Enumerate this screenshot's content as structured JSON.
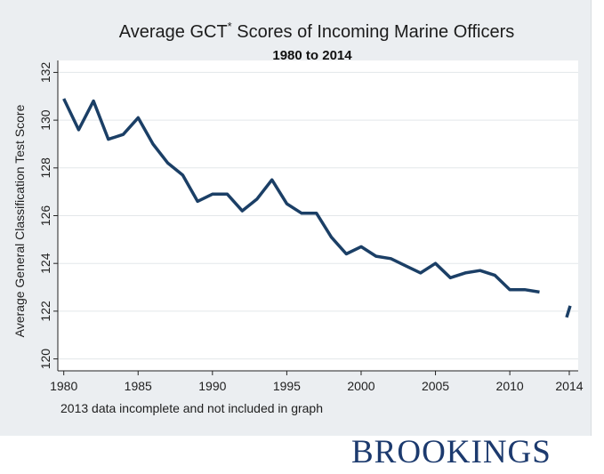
{
  "chart_data": {
    "type": "line",
    "title": "Average GCT",
    "title_superscript": "*",
    "title_rest": " Scores of Incoming Marine Officers",
    "subtitle": "1980 to 2014",
    "ylabel": "Average General Classification Test Score",
    "xlabel": "",
    "note": "2013 data incomplete and not included in graph",
    "xlim": [
      1979.6,
      2014.6
    ],
    "ylim": [
      119.5,
      132.5
    ],
    "x_ticks": [
      1980,
      1985,
      1990,
      1995,
      2000,
      2005,
      2010,
      2014
    ],
    "y_ticks": [
      120,
      122,
      124,
      126,
      128,
      130,
      132
    ],
    "grid": true,
    "series": [
      {
        "name": "Average GCT Score",
        "color": "#1b3f66",
        "segments": [
          {
            "x": [
              1980,
              1981,
              1982,
              1983,
              1984,
              1985,
              1986,
              1987,
              1988,
              1989,
              1990,
              1991,
              1992,
              1993,
              1994,
              1995,
              1996,
              1997,
              1998,
              1999,
              2000,
              2001,
              2002,
              2003,
              2004,
              2005,
              2006,
              2007,
              2008,
              2009,
              2010,
              2011,
              2012
            ],
            "y": [
              130.9,
              129.6,
              130.8,
              129.2,
              129.4,
              130.1,
              129.0,
              128.2,
              127.7,
              126.6,
              126.9,
              126.9,
              126.2,
              126.7,
              127.5,
              126.5,
              126.1,
              126.1,
              125.1,
              124.4,
              124.7,
              124.3,
              124.2,
              123.9,
              123.6,
              124.0,
              123.4,
              123.6,
              123.7,
              123.5,
              122.9,
              122.9,
              122.8
            ]
          },
          {
            "x": [
              2014
            ],
            "y": [
              122.0
            ]
          }
        ]
      }
    ]
  },
  "brand": {
    "name": "BROOKINGS"
  }
}
